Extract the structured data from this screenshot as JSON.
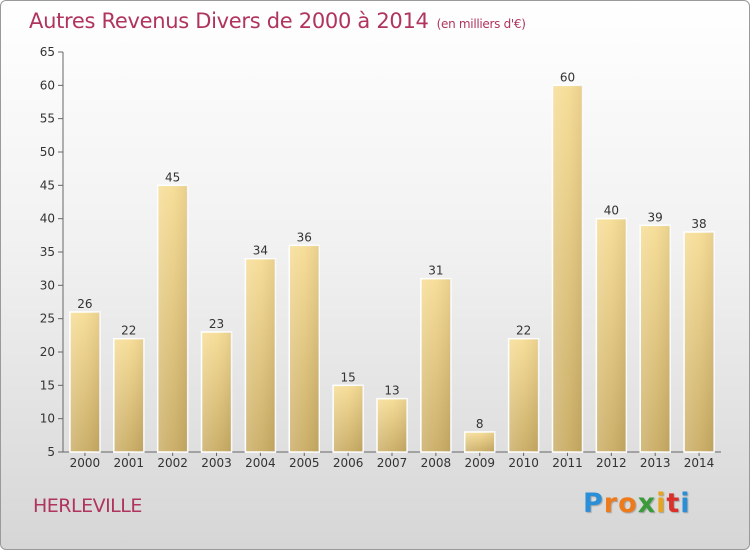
{
  "header": {
    "title": "Autres Revenus Divers de 2000 à 2014",
    "unit": "(en milliers d'€)"
  },
  "footer": {
    "place": "HERLEVILLE",
    "logo_letters": [
      "P",
      "r",
      "o",
      "x",
      "i",
      "t",
      "i"
    ],
    "logo_colors": [
      "#2b8fd8",
      "#ee7b1b",
      "#ee7b1b",
      "#3b9b3b",
      "#e8a51b",
      "#d9302c",
      "#2b8fd8"
    ]
  },
  "chart_data": {
    "type": "bar",
    "title": "Autres Revenus Divers de 2000 à 2014",
    "categories": [
      "2000",
      "2001",
      "2002",
      "2003",
      "2004",
      "2005",
      "2006",
      "2007",
      "2008",
      "2009",
      "2010",
      "2011",
      "2012",
      "2013",
      "2014"
    ],
    "values": [
      26,
      22,
      45,
      23,
      34,
      36,
      15,
      13,
      31,
      8,
      22,
      60,
      40,
      39,
      38
    ],
    "ylim": [
      5,
      65
    ],
    "yticks": [
      5,
      10,
      15,
      20,
      25,
      30,
      35,
      40,
      45,
      50,
      55,
      60,
      65
    ],
    "grid": false,
    "bar_color": "#e8cd82"
  }
}
